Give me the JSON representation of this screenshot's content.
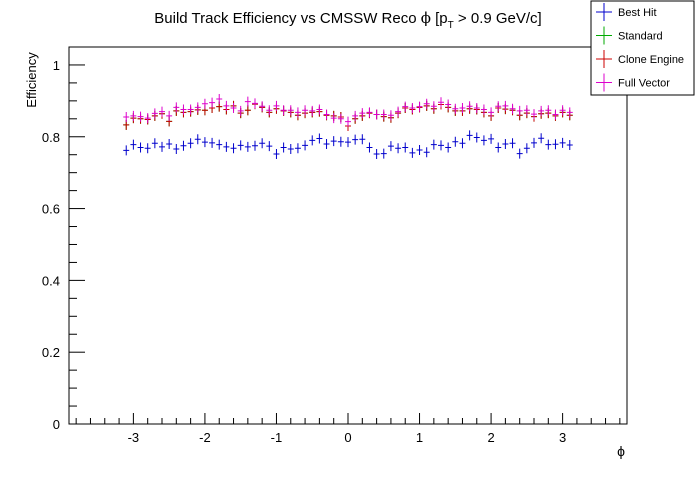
{
  "chart_data": {
    "type": "scatter",
    "title_main": "Build Track Efficiency vs CMSSW Reco ",
    "title_phi": "ϕ",
    "title_bracket": " [p",
    "title_sub": "T",
    "title_rest": " > 0.9 GeV/c]",
    "xlabel": "ϕ",
    "ylabel": "Efficiency",
    "xlim": [
      -3.9,
      3.9
    ],
    "ylim": [
      0,
      1.05
    ],
    "grid": false,
    "legend_position": "top-right",
    "x_tick_labels": [
      "-3",
      "-2",
      "-1",
      "0",
      "1",
      "2",
      "3"
    ],
    "y_tick_labels": [
      "0",
      "0.2",
      "0.4",
      "0.6",
      "0.8",
      "1"
    ],
    "x": [
      -3.1,
      -3.0,
      -2.9,
      -2.8,
      -2.7,
      -2.6,
      -2.5,
      -2.4,
      -2.3,
      -2.2,
      -2.1,
      -2.0,
      -1.9,
      -1.8,
      -1.7,
      -1.6,
      -1.5,
      -1.4,
      -1.3,
      -1.2,
      -1.1,
      -1.0,
      -0.9,
      -0.8,
      -0.7,
      -0.6,
      -0.5,
      -0.4,
      -0.3,
      -0.2,
      -0.1,
      0.0,
      0.1,
      0.2,
      0.3,
      0.4,
      0.5,
      0.6,
      0.7,
      0.8,
      0.9,
      1.0,
      1.1,
      1.2,
      1.3,
      1.4,
      1.5,
      1.6,
      1.7,
      1.8,
      1.9,
      2.0,
      2.1,
      2.2,
      2.3,
      2.4,
      2.5,
      2.6,
      2.7,
      2.8,
      2.9,
      3.0,
      3.1
    ],
    "series": [
      {
        "name": "Best Hit",
        "color": "#0000cc",
        "values": [
          0.762,
          0.778,
          0.77,
          0.768,
          0.782,
          0.772,
          0.78,
          0.766,
          0.775,
          0.782,
          0.793,
          0.785,
          0.783,
          0.778,
          0.772,
          0.768,
          0.776,
          0.772,
          0.775,
          0.782,
          0.774,
          0.752,
          0.77,
          0.766,
          0.768,
          0.776,
          0.79,
          0.795,
          0.78,
          0.788,
          0.786,
          0.785,
          0.792,
          0.793,
          0.77,
          0.752,
          0.753,
          0.774,
          0.768,
          0.77,
          0.755,
          0.763,
          0.757,
          0.778,
          0.776,
          0.77,
          0.786,
          0.782,
          0.804,
          0.798,
          0.79,
          0.794,
          0.77,
          0.78,
          0.782,
          0.753,
          0.768,
          0.783,
          0.796,
          0.778,
          0.779,
          0.783,
          0.777
        ]
      },
      {
        "name": "Standard",
        "color": "#00aa00",
        "values": [
          0.833,
          0.852,
          0.85,
          0.848,
          0.858,
          0.864,
          0.843,
          0.872,
          0.868,
          0.87,
          0.875,
          0.874,
          0.88,
          0.884,
          0.876,
          0.886,
          0.866,
          0.874,
          0.891,
          0.882,
          0.868,
          0.878,
          0.872,
          0.868,
          0.86,
          0.866,
          0.868,
          0.87,
          0.86,
          0.858,
          0.855,
          0.83,
          0.85,
          0.858,
          0.866,
          0.862,
          0.856,
          0.853,
          0.866,
          0.88,
          0.876,
          0.882,
          0.886,
          0.878,
          0.89,
          0.882,
          0.872,
          0.872,
          0.878,
          0.876,
          0.868,
          0.858,
          0.88,
          0.877,
          0.874,
          0.86,
          0.866,
          0.856,
          0.864,
          0.866,
          0.858,
          0.868,
          0.86
        ]
      },
      {
        "name": "Clone Engine",
        "color": "#cc0000",
        "values": [
          0.833,
          0.852,
          0.85,
          0.848,
          0.858,
          0.864,
          0.843,
          0.872,
          0.868,
          0.87,
          0.875,
          0.874,
          0.88,
          0.884,
          0.876,
          0.886,
          0.866,
          0.874,
          0.891,
          0.882,
          0.868,
          0.878,
          0.872,
          0.868,
          0.86,
          0.866,
          0.868,
          0.87,
          0.86,
          0.858,
          0.855,
          0.83,
          0.85,
          0.858,
          0.866,
          0.862,
          0.856,
          0.853,
          0.866,
          0.88,
          0.876,
          0.882,
          0.886,
          0.878,
          0.89,
          0.882,
          0.872,
          0.872,
          0.878,
          0.876,
          0.868,
          0.858,
          0.88,
          0.877,
          0.874,
          0.86,
          0.866,
          0.856,
          0.864,
          0.866,
          0.858,
          0.868,
          0.86
        ]
      },
      {
        "name": "Full Vector",
        "color": "#dd00cc",
        "values": [
          0.855,
          0.858,
          0.856,
          0.852,
          0.865,
          0.87,
          0.858,
          0.882,
          0.876,
          0.876,
          0.882,
          0.892,
          0.895,
          0.905,
          0.886,
          0.88,
          0.872,
          0.898,
          0.893,
          0.885,
          0.874,
          0.886,
          0.874,
          0.874,
          0.868,
          0.874,
          0.872,
          0.876,
          0.862,
          0.852,
          0.85,
          0.842,
          0.858,
          0.866,
          0.868,
          0.862,
          0.862,
          0.86,
          0.87,
          0.884,
          0.88,
          0.884,
          0.892,
          0.885,
          0.896,
          0.89,
          0.878,
          0.88,
          0.885,
          0.88,
          0.876,
          0.868,
          0.885,
          0.886,
          0.878,
          0.872,
          0.874,
          0.863,
          0.872,
          0.874,
          0.862,
          0.874,
          0.868
        ]
      }
    ]
  }
}
